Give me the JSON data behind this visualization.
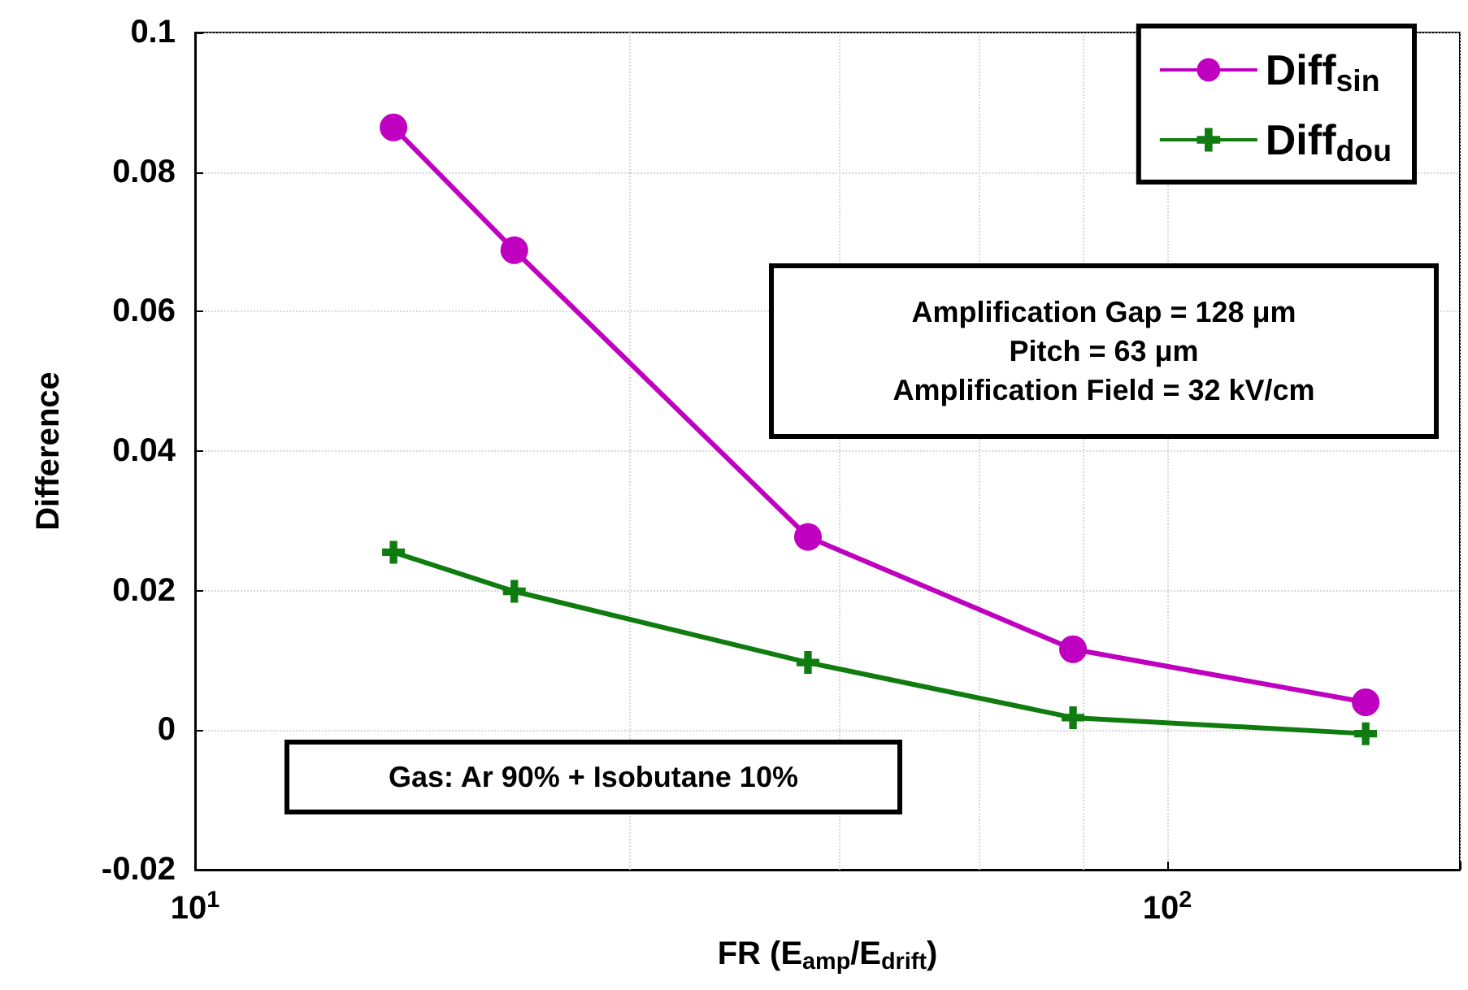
{
  "chart_data": {
    "type": "line",
    "xlabel": "FR (E$_{amp}$/E$_{drift}$)",
    "ylabel": "Difference",
    "log": "x",
    "grid": true,
    "legend": "top right",
    "xlim": [
      10,
      200
    ],
    "xticks": [
      {
        "value": 10,
        "label": "10$^{1}$"
      },
      {
        "value": 100,
        "label": "10$^{2}$"
      }
    ],
    "ylim": [
      -0.02,
      0.1
    ],
    "yticks": [
      -0.02,
      0,
      0.02,
      0.04,
      0.06,
      0.08,
      0.1
    ],
    "x": [
      16,
      21.3,
      42.7,
      80,
      160
    ],
    "series": [
      {
        "name": "Diff$_{sin}$",
        "color": "#c000c0",
        "marker": "circle",
        "values": [
          0.0864,
          0.0688,
          0.0277,
          0.0116,
          0.004
        ]
      },
      {
        "name": "Diff$_{dou}$",
        "color": "#107c10",
        "marker": "cross",
        "values": [
          0.0255,
          0.0199,
          0.0097,
          0.0018,
          -0.0005
        ]
      }
    ],
    "annotations": [
      "Amplification Gap = 128 μm\nPitch = 63 μm\nAmplification Field = 32 kV/cm",
      "Gas: Ar 90% + Isobutane 10%"
    ]
  }
}
